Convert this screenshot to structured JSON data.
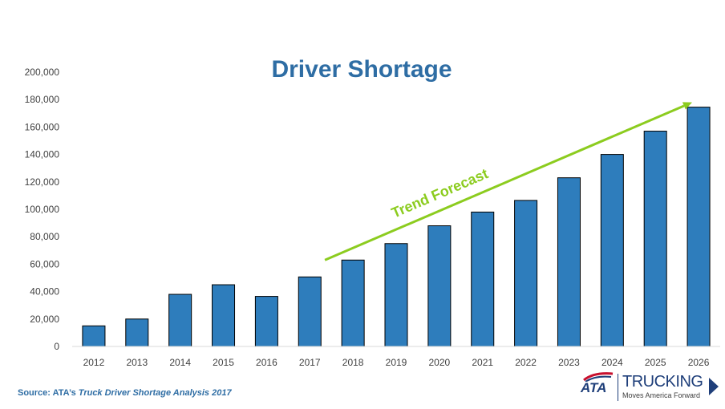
{
  "chart_data": {
    "type": "bar",
    "title": "Driver Shortage",
    "categories": [
      "2012",
      "2013",
      "2014",
      "2015",
      "2016",
      "2017",
      "2018",
      "2019",
      "2020",
      "2021",
      "2022",
      "2023",
      "2024",
      "2025",
      "2026"
    ],
    "values": [
      15000,
      20000,
      38000,
      45000,
      36500,
      50700,
      63000,
      75000,
      88000,
      98000,
      106500,
      123000,
      140000,
      157000,
      174500
    ],
    "ylim": [
      0,
      200000
    ],
    "yticks": [
      0,
      20000,
      40000,
      60000,
      80000,
      100000,
      120000,
      140000,
      160000,
      180000,
      200000
    ],
    "ytick_labels": [
      "0",
      "20,000",
      "40,000",
      "60,000",
      "80,000",
      "100,000",
      "120,000",
      "140,000",
      "160,000",
      "180,000",
      "200,000"
    ],
    "xlabel": "",
    "ylabel": "",
    "grid": false,
    "annotation": {
      "text": "Trend Forecast",
      "from_category": "2018",
      "from_value": 63000,
      "to_category": "2026",
      "to_value": 178000
    },
    "colors": {
      "bar": "#2e7dbc",
      "bar_stroke": "#000000",
      "title": "#2e6da4",
      "trend": "#8ccc1f"
    }
  },
  "footer": {
    "source_prefix": "Source: ATA’s ",
    "source_italic": "Truck Driver Shortage Analysis 2017"
  },
  "logo": {
    "abbr": "ATA",
    "word": "TRUCKING",
    "tagline": "Moves America Forward"
  }
}
